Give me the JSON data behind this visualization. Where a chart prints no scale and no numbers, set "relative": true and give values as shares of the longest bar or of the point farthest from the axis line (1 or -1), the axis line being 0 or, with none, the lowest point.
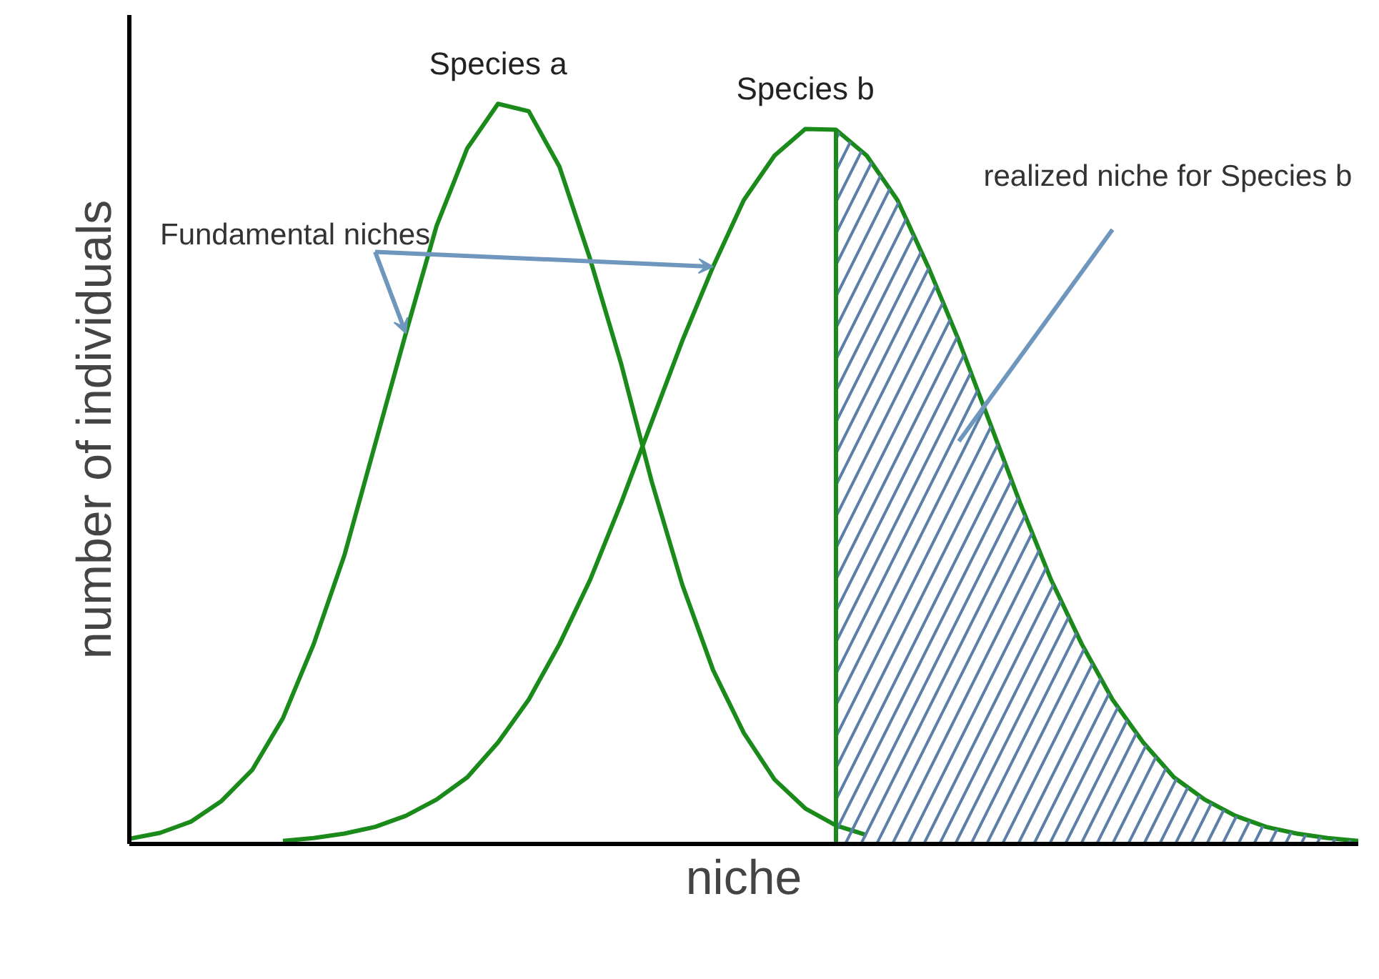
{
  "chart_data": {
    "type": "line",
    "relative": true,
    "xlabel": "niche",
    "ylabel": "number of individuals",
    "tick_labels": false,
    "categories": [
      null,
      null,
      null,
      null,
      null,
      null,
      null,
      null,
      null,
      null,
      null,
      null,
      null,
      null,
      null,
      null,
      null,
      null,
      null,
      null,
      null,
      null,
      null,
      null,
      null,
      null,
      null,
      null,
      null,
      null,
      null,
      null,
      null,
      null,
      null,
      null,
      null,
      null,
      null,
      null,
      null
    ],
    "series": [
      {
        "name": "Species a",
        "color": "#1a8a1a",
        "values": [
          0.007,
          0.015,
          0.03,
          0.058,
          0.1,
          0.17,
          0.27,
          0.39,
          0.54,
          0.69,
          0.835,
          0.94,
          1.0,
          0.99,
          0.915,
          0.79,
          0.65,
          0.49,
          0.35,
          0.235,
          0.15,
          0.087,
          0.048,
          0.025,
          0.012,
          null,
          null,
          null,
          null,
          null,
          null,
          null,
          null,
          null,
          null,
          null,
          null,
          null,
          null,
          null,
          null
        ]
      },
      {
        "name": "Species b",
        "color": "#1a8a1a",
        "values": [
          null,
          null,
          null,
          null,
          null,
          0.004,
          0.008,
          0.014,
          0.023,
          0.038,
          0.06,
          0.09,
          0.137,
          0.195,
          0.27,
          0.357,
          0.46,
          0.57,
          0.68,
          0.78,
          0.87,
          0.93,
          0.966,
          0.965,
          0.93,
          0.87,
          0.78,
          0.68,
          0.57,
          0.46,
          0.357,
          0.27,
          0.195,
          0.137,
          0.09,
          0.06,
          0.038,
          0.023,
          0.014,
          0.008,
          0.004
        ]
      },
      {
        "type": "area",
        "color": "#5b7fa8",
        "values": [
          null,
          null,
          null,
          null,
          null,
          null,
          null,
          null,
          null,
          null,
          null,
          null,
          null,
          null,
          null,
          null,
          null,
          null,
          null,
          null,
          null,
          null,
          null,
          0.965,
          0.93,
          0.87,
          0.78,
          0.68,
          0.57,
          0.46,
          0.357,
          0.27,
          0.195,
          0.137,
          0.09,
          0.06,
          0.038,
          0.023,
          0.014,
          0.008,
          0.004
        ]
      }
    ],
    "annotations": [
      "Fundamental niches",
      "realized niche for Species b"
    ]
  }
}
